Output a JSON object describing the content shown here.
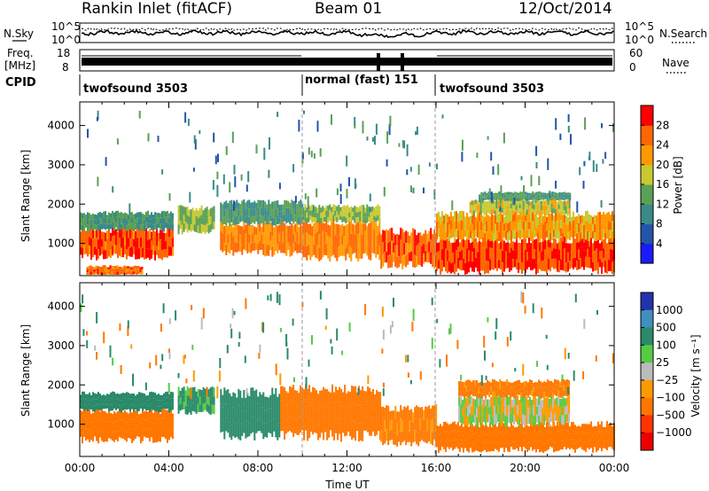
{
  "header": {
    "radar": "Rankin Inlet (fitACF)",
    "beam": "Beam 01",
    "date": "12/Oct/2014"
  },
  "top_panel": {
    "left_label": "N.Sky",
    "right_label": "N.Search",
    "left_ticks": [
      "10^5",
      "10^0"
    ],
    "right_ticks": [
      "10^5",
      "10^0"
    ]
  },
  "freq_panel": {
    "left_label_1": "Freq.",
    "left_label_2": "[MHz]",
    "left_ticks": [
      "18",
      "8"
    ],
    "right_label": "Nave",
    "right_ticks": [
      "60",
      "0"
    ]
  },
  "cpid_panel": {
    "label": "CPID",
    "modes": [
      {
        "name": "twofsound 3503",
        "start_h": 0,
        "end_h": 10
      },
      {
        "name": "normal (fast) 151",
        "start_h": 10,
        "end_h": 16
      },
      {
        "name": "twofsound 3503",
        "start_h": 16,
        "end_h": 24
      }
    ]
  },
  "colors": {
    "power_scale": [
      "#1a1aff",
      "#2255aa",
      "#3a8a8a",
      "#5aa055",
      "#c8c830",
      "#ff9900",
      "#ff6600",
      "#ff0000"
    ],
    "velocity_scale": [
      "#2233aa",
      "#3f8fbf",
      "#2a8a6a",
      "#55cc44",
      "#bbbbbb",
      "#ff9900",
      "#ff7700",
      "#ff3300",
      "#ee0000"
    ]
  },
  "chart_data": [
    {
      "type": "heatmap",
      "title": "",
      "xlabel": "",
      "ylabel": "Slant Range [km]",
      "xlim": [
        "00:00",
        "00:00"
      ],
      "ylim": [
        180,
        4600
      ],
      "x_ticks": [
        "00:00",
        "04:00",
        "08:00",
        "12:00",
        "16:00",
        "20:00",
        "00:00"
      ],
      "y_ticks": [
        "1000",
        "2000",
        "3000",
        "4000"
      ],
      "colorbar_label": "Power [dB]",
      "colorbar_ticks": [
        "4",
        "8",
        "12",
        "16",
        "20",
        "24",
        "28"
      ],
      "colorbar_range": [
        0,
        32
      ],
      "regions": [
        {
          "t0": 0.0,
          "t1": 4.2,
          "r0": 650,
          "r1": 1350,
          "value": 27
        },
        {
          "t0": 0.0,
          "t1": 4.2,
          "r0": 1350,
          "r1": 1780,
          "value": 12
        },
        {
          "t0": 0.3,
          "t1": 2.8,
          "r0": 200,
          "r1": 420,
          "value": 26
        },
        {
          "t0": 4.4,
          "t1": 6.0,
          "r0": 1300,
          "r1": 1900,
          "value": 16
        },
        {
          "t0": 6.3,
          "t1": 10.0,
          "r0": 750,
          "r1": 1500,
          "value": 24
        },
        {
          "t0": 6.3,
          "t1": 10.0,
          "r0": 1500,
          "r1": 2050,
          "value": 12
        },
        {
          "t0": 10.0,
          "t1": 13.5,
          "r0": 650,
          "r1": 1550,
          "value": 24
        },
        {
          "t0": 10.0,
          "t1": 13.5,
          "r0": 1550,
          "r1": 1950,
          "value": 16
        },
        {
          "t0": 13.5,
          "t1": 16.0,
          "r0": 450,
          "r1": 1300,
          "value": 26
        },
        {
          "t0": 16.0,
          "t1": 24.0,
          "r0": 300,
          "r1": 1100,
          "value": 28
        },
        {
          "t0": 16.0,
          "t1": 24.0,
          "r0": 1100,
          "r1": 1750,
          "value": 22
        },
        {
          "t0": 17.5,
          "t1": 22.0,
          "r0": 1750,
          "r1": 2100,
          "value": 18
        },
        {
          "t0": 18.0,
          "t1": 22.0,
          "r0": 2100,
          "r1": 2300,
          "value": 12
        }
      ]
    },
    {
      "type": "heatmap",
      "title": "",
      "xlabel": "Time UT",
      "ylabel": "Slant Range [km]",
      "xlim": [
        "00:00",
        "00:00"
      ],
      "ylim": [
        180,
        4600
      ],
      "x_ticks": [
        "00:00",
        "04:00",
        "08:00",
        "12:00",
        "16:00",
        "20:00",
        "00:00"
      ],
      "y_ticks": [
        "1000",
        "2000",
        "3000",
        "4000"
      ],
      "colorbar_label": "Velocity [m s⁻¹]",
      "colorbar_ticks": [
        "1000",
        "500",
        "100",
        "25",
        "−25",
        "−100",
        "−500",
        "−1000"
      ],
      "regions": [
        {
          "t0": 0.0,
          "t1": 4.2,
          "r0": 600,
          "r1": 1350,
          "value": -300
        },
        {
          "t0": 0.0,
          "t1": 4.2,
          "r0": 1350,
          "r1": 1780,
          "value": 300
        },
        {
          "t0": 4.4,
          "t1": 6.0,
          "r0": 1300,
          "r1": 1900,
          "value": 150
        },
        {
          "t0": 6.3,
          "t1": 9.0,
          "r0": 700,
          "r1": 1800,
          "value": 200
        },
        {
          "t0": 9.0,
          "t1": 13.5,
          "r0": 700,
          "r1": 1900,
          "value": -200
        },
        {
          "t0": 13.5,
          "t1": 16.0,
          "r0": 500,
          "r1": 1400,
          "value": -150
        },
        {
          "t0": 16.0,
          "t1": 24.0,
          "r0": 350,
          "r1": 1000,
          "value": -250
        },
        {
          "t0": 17.0,
          "t1": 22.0,
          "r0": 1000,
          "r1": 1700,
          "value": 0
        },
        {
          "t0": 17.0,
          "t1": 22.0,
          "r0": 1700,
          "r1": 2100,
          "value": -180
        }
      ]
    }
  ]
}
